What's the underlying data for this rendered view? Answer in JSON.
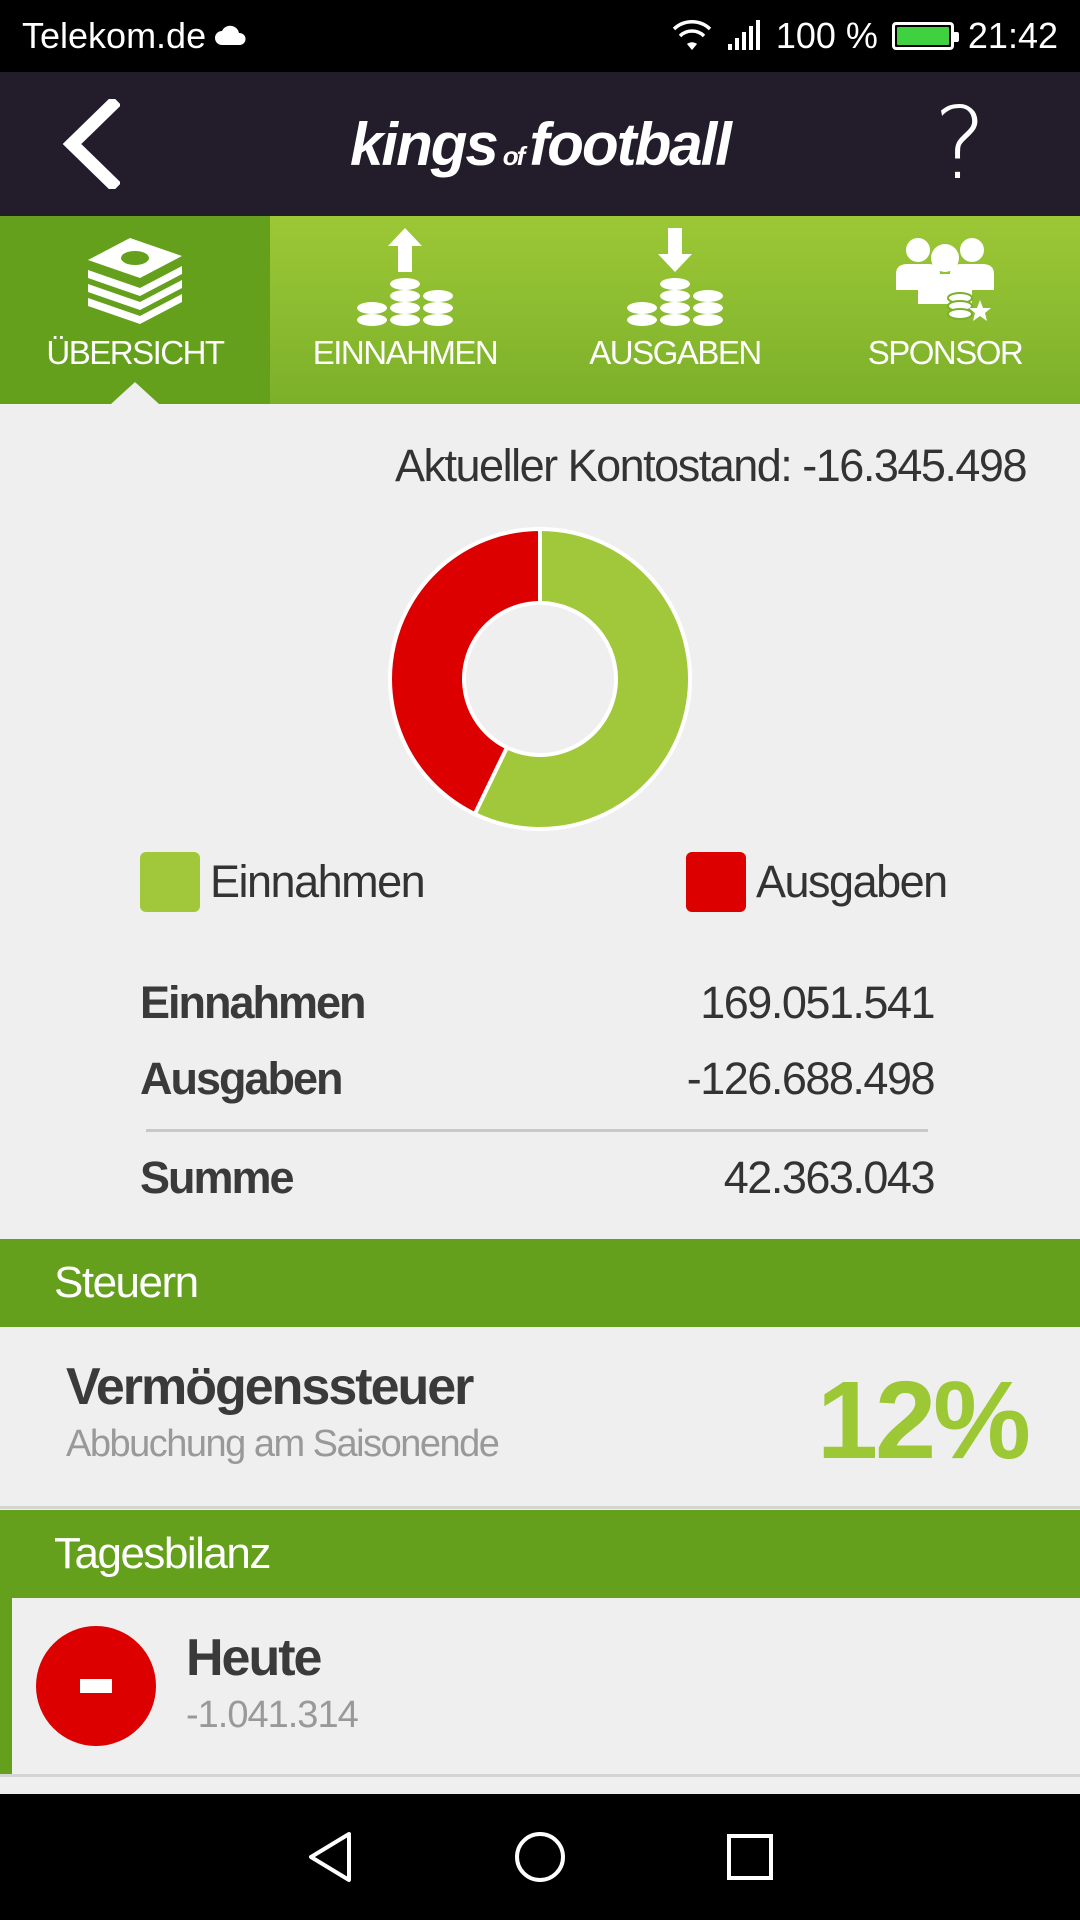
{
  "status_bar": {
    "carrier": "Telekom.de",
    "battery": "100 %",
    "battery_level": 1.0,
    "time": "21:42"
  },
  "header": {
    "logo_part1": "kings",
    "logo_part2": "of",
    "logo_part3": "football",
    "help_label": "?"
  },
  "tabs": [
    {
      "label": "ÜBERSICHT",
      "icon": "money-stack-icon",
      "active": true
    },
    {
      "label": "EINNAHMEN",
      "icon": "coins-up-icon",
      "active": false
    },
    {
      "label": "AUSGABEN",
      "icon": "coins-down-icon",
      "active": false
    },
    {
      "label": "SPONSOR",
      "icon": "sponsor-group-icon",
      "active": false
    }
  ],
  "balance": {
    "text": "Aktueller Kontostand: -16.345.498"
  },
  "colors": {
    "einnahmen": "#a0c83a",
    "ausgaben": "#dc0000",
    "accent": "#64a01c",
    "header_bg": "#221c2b"
  },
  "chart_data": {
    "type": "pie",
    "categories": [
      "Einnahmen",
      "Ausgaben"
    ],
    "values": [
      169051541,
      126688498
    ]
  },
  "legend": {
    "einnahmen": "Einnahmen",
    "ausgaben": "Ausgaben"
  },
  "summary": {
    "einnahmen_label": "Einnahmen",
    "einnahmen_value": "169.051.541",
    "ausgaben_label": "Ausgaben",
    "ausgaben_value": "-126.688.498",
    "summe_label": "Summe",
    "summe_value": "42.363.043"
  },
  "steuern": {
    "section_title": "Steuern",
    "title": "Vermögenssteuer",
    "subtitle": "Abbuchung am Saisonende",
    "percent": "12%"
  },
  "tagesbilanz": {
    "section_title": "Tagesbilanz",
    "title": "Heute",
    "value": "-1.041.314"
  }
}
